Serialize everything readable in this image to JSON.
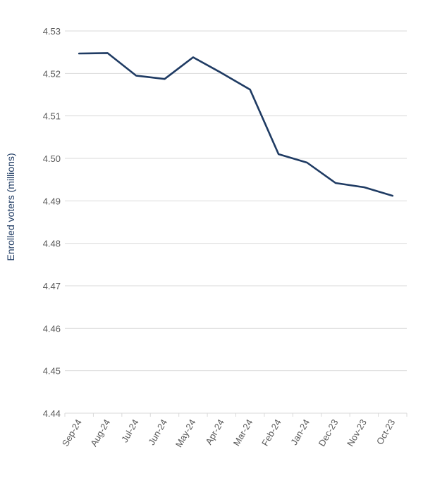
{
  "chart_data": {
    "type": "line",
    "title": "",
    "xlabel": "",
    "ylabel": "Enrolled voters (millions)",
    "categories": [
      "Sep-24",
      "Aug-24",
      "Jul-24",
      "Jun-24",
      "May-24",
      "Apr-24",
      "Mar-24",
      "Feb-24",
      "Jan-24",
      "Dec-23",
      "Nov-23",
      "Oct-23"
    ],
    "series": [
      {
        "values": [
          4.5247,
          4.5248,
          4.5195,
          4.5187,
          4.5238,
          4.5201,
          4.5162,
          4.501,
          4.499,
          4.4942,
          4.4932,
          4.4912
        ],
        "color": "#1f3b63"
      }
    ],
    "ylim": [
      4.44,
      4.53
    ],
    "yticks": [
      4.53,
      4.52,
      4.51,
      4.5,
      4.49,
      4.48,
      4.47,
      4.46,
      4.45,
      4.44
    ],
    "ytick_labels": [
      "4.53",
      "4.52",
      "4.51",
      "4.50",
      "4.49",
      "4.48",
      "4.47",
      "4.46",
      "4.45",
      "4.44"
    ],
    "grid": true,
    "legend": "none",
    "colors": {
      "line": "#1f3b63",
      "grid": "#d9d9d9",
      "axis_title": "#1f3b63",
      "tick_text": "#595959"
    }
  }
}
